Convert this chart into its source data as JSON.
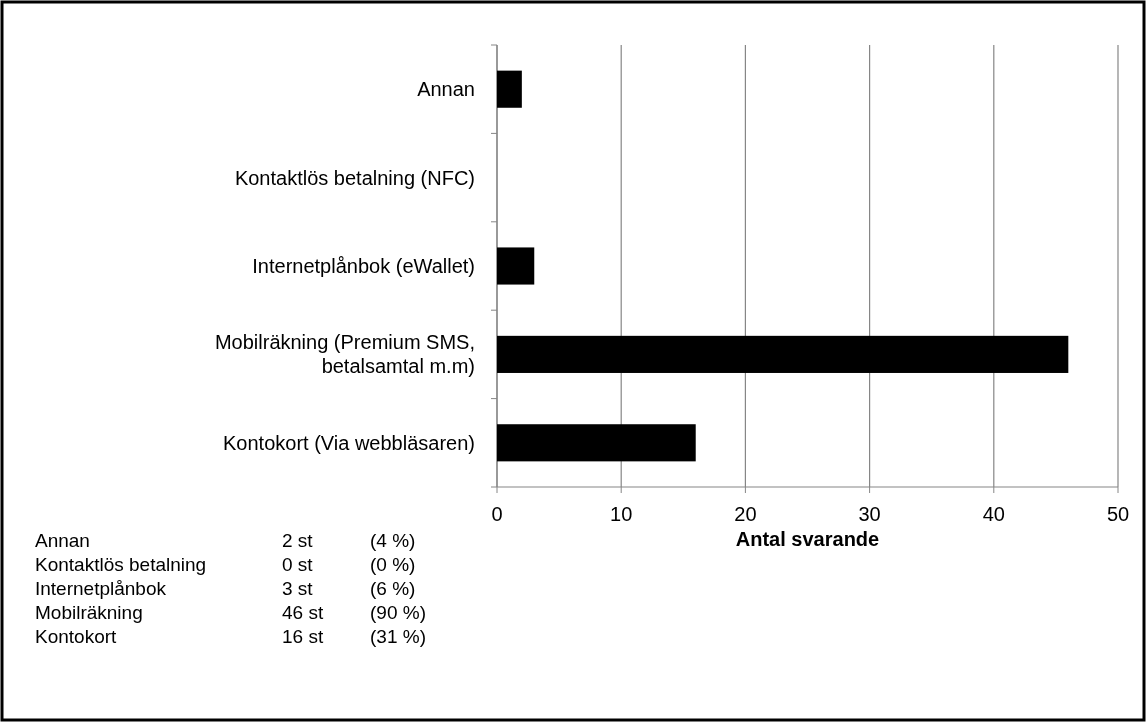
{
  "chart_data": {
    "type": "bar",
    "orientation": "horizontal",
    "xlabel": "Antal svarande",
    "categories": [
      "Annan",
      "Kontaktlös betalning (NFC)",
      "Internetplånbok (eWallet)",
      "Mobilräkning (Premium SMS, betalsamtal m.m)",
      "Kontokort (Via webbläsaren)"
    ],
    "values": [
      2,
      0,
      3,
      46,
      16
    ],
    "color": "#000000",
    "xlim": [
      0,
      50
    ],
    "xticks": [
      0,
      10,
      20,
      30,
      40,
      50
    ],
    "grid": "x",
    "annotations": [
      "Annan",
      "2 st",
      "(4 %)",
      "Kontaktlös betalning",
      "0 st",
      "(0 %)",
      "Internetplånbok",
      "3 st",
      "(6 %)",
      "Mobilräkning",
      "46 st",
      "(90 %)",
      "Kontokort",
      "16 st",
      "(31 %)"
    ]
  }
}
